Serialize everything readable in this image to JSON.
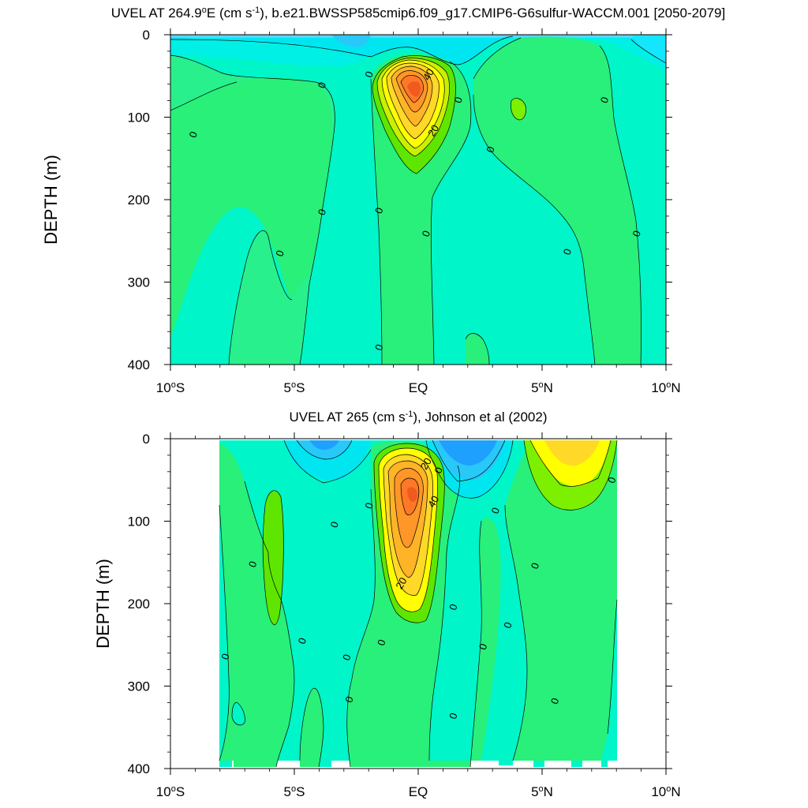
{
  "chart_data": [
    {
      "type": "contour",
      "title_prefix": "UVEL AT 264.9",
      "title_degree": "o",
      "title_unit_1": "E (cm s",
      "title_exp": "-1",
      "title_rest": "), b.e21.BWSSP585cmip6.f09_g17.CMIP6-G6sulfur-WACCM.001 [2050-2079]",
      "ylabel": "DEPTH (m)",
      "xlim": [
        -10,
        10
      ],
      "ylim": [
        0,
        400
      ],
      "y_inverted": true,
      "grid": false,
      "x_ticks": [
        {
          "value": -10,
          "label": "10",
          "deg": "o",
          "hemi": "S"
        },
        {
          "value": -5,
          "label": "5",
          "deg": "o",
          "hemi": "S"
        },
        {
          "value": 0,
          "label": "EQ",
          "deg": "",
          "hemi": ""
        },
        {
          "value": 5,
          "label": "5",
          "deg": "o",
          "hemi": "N"
        },
        {
          "value": 10,
          "label": "10",
          "deg": "o",
          "hemi": "N"
        }
      ],
      "y_ticks": [
        {
          "value": 0,
          "label": "0"
        },
        {
          "value": 100,
          "label": "100"
        },
        {
          "value": 200,
          "label": "200"
        },
        {
          "value": 300,
          "label": "300"
        },
        {
          "value": 400,
          "label": "400"
        }
      ],
      "contour_labels": [
        {
          "x": 0.4,
          "y": 48,
          "text": "40"
        },
        {
          "x": 0.6,
          "y": 116,
          "text": "20"
        },
        {
          "x": -3.9,
          "y": 61,
          "text": "0"
        },
        {
          "x": -2.0,
          "y": 48,
          "text": "0"
        },
        {
          "x": 1.6,
          "y": 79,
          "text": "0"
        },
        {
          "x": -9.1,
          "y": 121,
          "text": "0"
        },
        {
          "x": 2.9,
          "y": 139,
          "text": "0"
        },
        {
          "x": 7.5,
          "y": 79,
          "text": "0"
        },
        {
          "x": -3.9,
          "y": 215,
          "text": "0"
        },
        {
          "x": -1.6,
          "y": 213,
          "text": "0"
        },
        {
          "x": 0.3,
          "y": 241,
          "text": "0"
        },
        {
          "x": 8.8,
          "y": 241,
          "text": "0"
        },
        {
          "x": -5.6,
          "y": 265,
          "text": "0"
        },
        {
          "x": 6.0,
          "y": 263,
          "text": "0"
        },
        {
          "x": -1.6,
          "y": 379,
          "text": "0"
        }
      ],
      "max_value_approx": 50,
      "max_location": {
        "x": 0,
        "y": 65
      }
    },
    {
      "type": "contour",
      "title_prefix": "UVEL AT 265 (cm s",
      "title_exp": "-1",
      "title_rest": "), Johnson et al (2002)",
      "ylabel": "DEPTH (m)",
      "xlim": [
        -10,
        10
      ],
      "ylim": [
        0,
        400
      ],
      "y_inverted": true,
      "grid": false,
      "x_ticks": [
        {
          "value": -10,
          "label": "10",
          "deg": "o",
          "hemi": "S"
        },
        {
          "value": -5,
          "label": "5",
          "deg": "o",
          "hemi": "S"
        },
        {
          "value": 0,
          "label": "EQ",
          "deg": "",
          "hemi": ""
        },
        {
          "value": 5,
          "label": "5",
          "deg": "o",
          "hemi": "N"
        },
        {
          "value": 10,
          "label": "10",
          "deg": "o",
          "hemi": "N"
        }
      ],
      "y_ticks": [
        {
          "value": 0,
          "label": "0"
        },
        {
          "value": 100,
          "label": "100"
        },
        {
          "value": 200,
          "label": "200"
        },
        {
          "value": 300,
          "label": "300"
        },
        {
          "value": 400,
          "label": "400"
        }
      ],
      "contour_labels": [
        {
          "x": 0.3,
          "y": 30,
          "text": "20"
        },
        {
          "x": 0.6,
          "y": 76,
          "text": "40"
        },
        {
          "x": -0.7,
          "y": 175,
          "text": "20"
        },
        {
          "x": 0.8,
          "y": 38,
          "text": "0"
        },
        {
          "x": -2.0,
          "y": 81,
          "text": "0"
        },
        {
          "x": -3.4,
          "y": 104,
          "text": "0"
        },
        {
          "x": 3.1,
          "y": 87,
          "text": "0"
        },
        {
          "x": 7.8,
          "y": 50,
          "text": "0"
        },
        {
          "x": -6.7,
          "y": 152,
          "text": "0"
        },
        {
          "x": 4.7,
          "y": 154,
          "text": "0"
        },
        {
          "x": 1.4,
          "y": 204,
          "text": "0"
        },
        {
          "x": 3.6,
          "y": 226,
          "text": "0"
        },
        {
          "x": -7.8,
          "y": 264,
          "text": "0"
        },
        {
          "x": -4.7,
          "y": 245,
          "text": "0"
        },
        {
          "x": -2.9,
          "y": 265,
          "text": "0"
        },
        {
          "x": -1.5,
          "y": 247,
          "text": "0"
        },
        {
          "x": 2.6,
          "y": 252,
          "text": "0"
        },
        {
          "x": -2.8,
          "y": 316,
          "text": "0"
        },
        {
          "x": 5.5,
          "y": 318,
          "text": "0"
        },
        {
          "x": 1.4,
          "y": 336,
          "text": "0"
        }
      ],
      "max_value_approx": 50,
      "max_location": {
        "x": 0,
        "y": 65
      }
    }
  ]
}
